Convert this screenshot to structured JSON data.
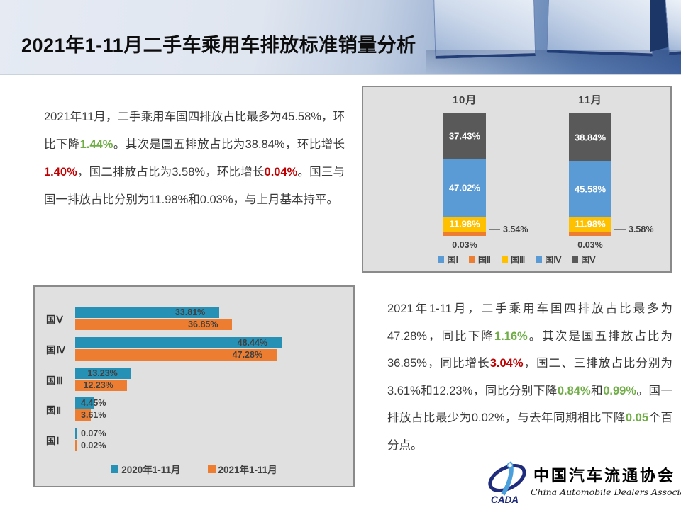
{
  "slide": {
    "title": "2021年1-11月二手车乘用车排放标准销量分析"
  },
  "analysis_monthly": {
    "segments": [
      {
        "text": "2021年11月，二手乘用车国四排放占比最多为45.58%，环比下降",
        "style": "normal"
      },
      {
        "text": "1.44%",
        "style": "green"
      },
      {
        "text": "。其次是国五排放占比为38.84%，环比增长",
        "style": "normal"
      },
      {
        "text": "1.40%",
        "style": "red"
      },
      {
        "text": "，国二排放占比为3.58%，环比增长",
        "style": "normal"
      },
      {
        "text": "0.04%",
        "style": "red"
      },
      {
        "text": "。国三与国一排放占比分别为11.98%和0.03%，与上月基本持平。",
        "style": "normal"
      }
    ]
  },
  "analysis_yearly": {
    "segments": [
      {
        "text": "2021年1-11月，二手乘用车国四排放占比最多为47.28%，同比下降",
        "style": "normal"
      },
      {
        "text": "1.16%",
        "style": "green"
      },
      {
        "text": "。其次是国五排放占比为36.85%，同比增长",
        "style": "normal"
      },
      {
        "text": "3.04%",
        "style": "red"
      },
      {
        "text": "，国二、三排放占比分别为3.61%和12.23%，同比分别下降",
        "style": "normal"
      },
      {
        "text": "0.84%",
        "style": "green"
      },
      {
        "text": "和",
        "style": "normal"
      },
      {
        "text": "0.99%",
        "style": "green"
      },
      {
        "text": "。国一排放占比最少为0.02%，与去年同期相比下降",
        "style": "normal"
      },
      {
        "text": "0.05",
        "style": "green"
      },
      {
        "text": "个百分点。",
        "style": "normal"
      }
    ]
  },
  "chart_data": [
    {
      "type": "bar",
      "subtype": "stacked-column",
      "categories": [
        "10月",
        "11月"
      ],
      "series": [
        {
          "name": "国Ⅰ",
          "color": "#5B9BD5",
          "values": [
            0.03,
            0.03
          ]
        },
        {
          "name": "国Ⅱ",
          "color": "#ED7D31",
          "values": [
            3.54,
            3.58
          ]
        },
        {
          "name": "国Ⅲ",
          "color": "#FFC000",
          "values": [
            11.98,
            11.98
          ]
        },
        {
          "name": "国Ⅳ",
          "color": "#5B9BD5",
          "values": [
            47.02,
            45.58
          ]
        },
        {
          "name": "国Ⅴ",
          "color": "#595959",
          "values": [
            37.43,
            38.84
          ]
        }
      ],
      "value_suffix": "%",
      "ylim": [
        0,
        100
      ],
      "legend_position": "bottom",
      "grid": "off",
      "axes": "hidden"
    },
    {
      "type": "bar",
      "subtype": "grouped-horizontal",
      "categories": [
        "国Ⅴ",
        "国Ⅳ",
        "国Ⅲ",
        "国Ⅱ",
        "国Ⅰ"
      ],
      "series": [
        {
          "name": "2020年1-11月",
          "color": "#2791B5",
          "values": [
            33.81,
            48.44,
            13.23,
            4.45,
            0.07
          ]
        },
        {
          "name": "2021年1-11月",
          "color": "#ED7D31",
          "values": [
            36.85,
            47.28,
            12.23,
            3.61,
            0.02
          ]
        }
      ],
      "value_suffix": "%",
      "xlim": [
        0,
        50
      ],
      "legend_position": "bottom",
      "grid": "off",
      "axes": "hidden"
    }
  ],
  "logo": {
    "org_cn": "中国汽车流通协会",
    "org_en": "China Automobile Dealers Association",
    "emblem_text": "CADA"
  },
  "colors": {
    "positive_red": "#C00000",
    "negative_green": "#70AD47",
    "panel_bg": "#E0E0E0",
    "panel_border": "#8A8A8A",
    "label_dark": "#404040"
  }
}
